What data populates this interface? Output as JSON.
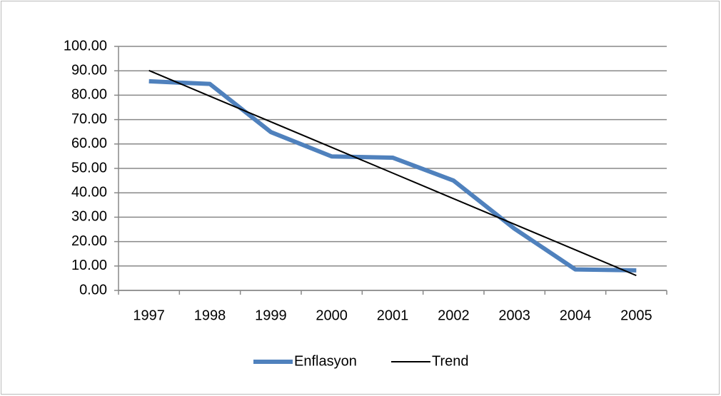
{
  "chart_data": {
    "type": "line",
    "categories": [
      "1997",
      "1998",
      "1999",
      "2000",
      "2001",
      "2002",
      "2003",
      "2004",
      "2005"
    ],
    "series": [
      {
        "name": "Enflasyon",
        "color": "#4f81bd",
        "values": [
          85.7,
          84.6,
          64.9,
          54.9,
          54.4,
          45.0,
          25.3,
          8.6,
          8.2
        ]
      },
      {
        "name": "Trend",
        "color": "#000000",
        "values": [
          90.1,
          79.6,
          69.1,
          58.6,
          48.1,
          37.6,
          27.1,
          16.6,
          6.1
        ]
      }
    ],
    "ylim": [
      0,
      100
    ],
    "yticks": [
      {
        "value": 0,
        "label": "0.00"
      },
      {
        "value": 10,
        "label": "10.00"
      },
      {
        "value": 20,
        "label": "20.00"
      },
      {
        "value": 30,
        "label": "30.00"
      },
      {
        "value": 40,
        "label": "40.00"
      },
      {
        "value": 50,
        "label": "50.00"
      },
      {
        "value": 60,
        "label": "60.00"
      },
      {
        "value": 70,
        "label": "70.00"
      },
      {
        "value": 80,
        "label": "80.00"
      },
      {
        "value": 90,
        "label": "90.00"
      },
      {
        "value": 100,
        "label": "100.00"
      }
    ],
    "grid": true,
    "legend": "bottom"
  }
}
